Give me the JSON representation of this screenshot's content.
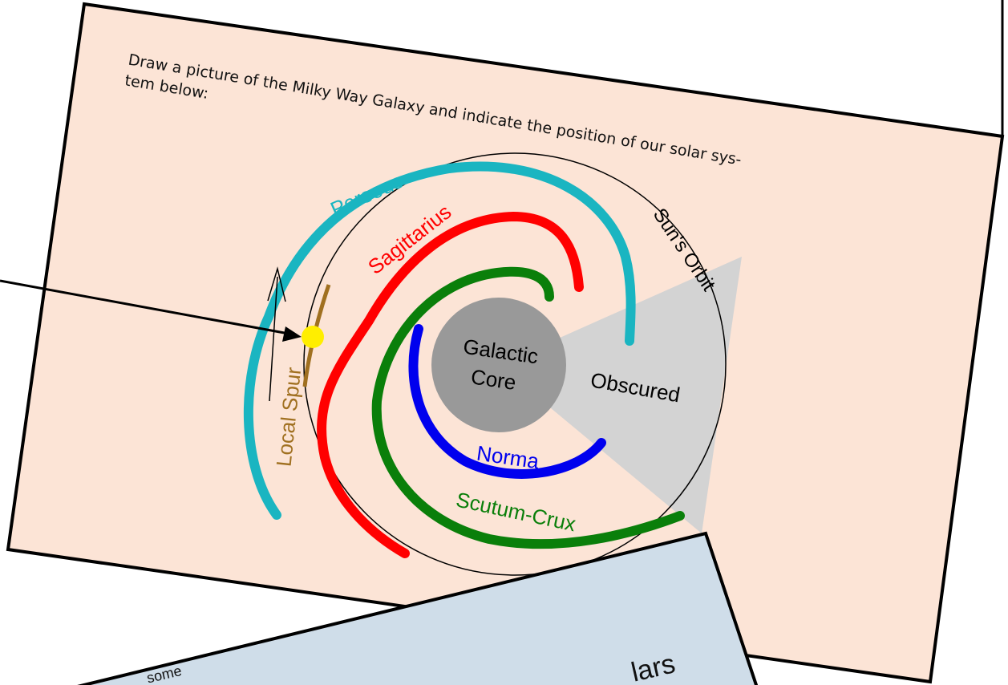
{
  "instruction": {
    "line1": "Draw a picture of the Milky Way Galaxy and indicate the position of our solar sys-",
    "line2": "tem below:"
  },
  "labels": {
    "perseus": "Perseus",
    "sagittarius": "Sagittarius",
    "suns_orbit": "Sun's Orbit",
    "core_line1": "Galactic",
    "core_line2": "Core",
    "obscured": "Obscured",
    "local_spur": "Local Spur",
    "norma": "Norma",
    "scutum_crux": "Scutum-Crux"
  },
  "next_card": {
    "text1": "some",
    "text2": "lars"
  }
}
